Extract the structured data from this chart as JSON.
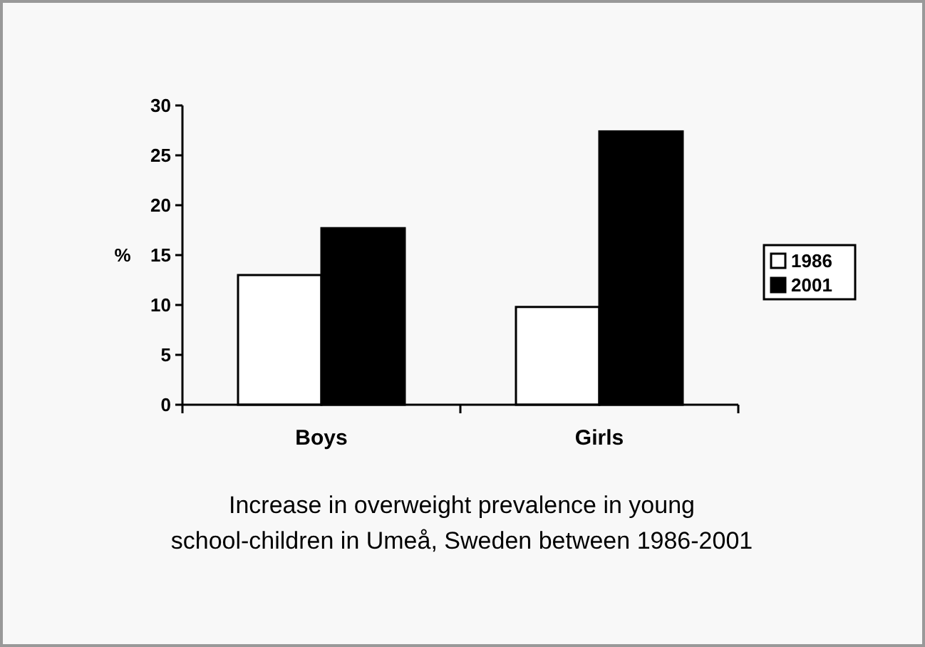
{
  "chart_data": {
    "type": "bar",
    "title": "Increase in overweight prevalence in young school-children in Umeå, Sweden between 1986-2001",
    "ylabel": "%",
    "categories": [
      "Boys",
      "Girls"
    ],
    "series": [
      {
        "name": "1986",
        "color": "#ffffff",
        "values": [
          13.0,
          9.8
        ]
      },
      {
        "name": "2001",
        "color": "#000000",
        "values": [
          17.7,
          27.4
        ]
      }
    ],
    "ylim": [
      0,
      30
    ],
    "yticks": [
      0,
      5,
      10,
      15,
      20,
      25,
      30
    ],
    "grid": false,
    "legend": "right"
  }
}
